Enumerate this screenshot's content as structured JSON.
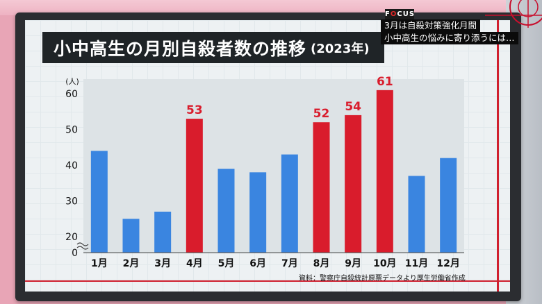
{
  "overlay": {
    "logo": "FOCUS",
    "caption_line1": "3月は自殺対策強化月間",
    "caption_line2": "小中高生の悩みに寄り添うには…"
  },
  "chart_data": {
    "type": "bar",
    "title": "小中高生の月別自殺者数の推移",
    "subtitle": "(2023年)",
    "ylabel": "(人)",
    "ylim": [
      20,
      62
    ],
    "yticks": [
      20,
      30,
      40,
      50,
      60
    ],
    "zero_label": "0",
    "categories": [
      "1月",
      "2月",
      "3月",
      "4月",
      "5月",
      "6月",
      "7月",
      "8月",
      "9月",
      "10月",
      "11月",
      "12月"
    ],
    "values": [
      44,
      25,
      27,
      53,
      39,
      38,
      43,
      52,
      54,
      61,
      37,
      42
    ],
    "highlighted": [
      false,
      false,
      false,
      true,
      false,
      false,
      false,
      true,
      true,
      true,
      false,
      false
    ],
    "data_labels": [
      "",
      "",
      "",
      "53",
      "",
      "",
      "",
      "52",
      "54",
      "61",
      "",
      ""
    ],
    "colors": {
      "normal": "#3a85e0",
      "highlight": "#d91c2c",
      "label": "#d91c2c"
    },
    "grid": false,
    "source": "資料：警察庁自殺統計原票データより厚生労働省作成"
  }
}
